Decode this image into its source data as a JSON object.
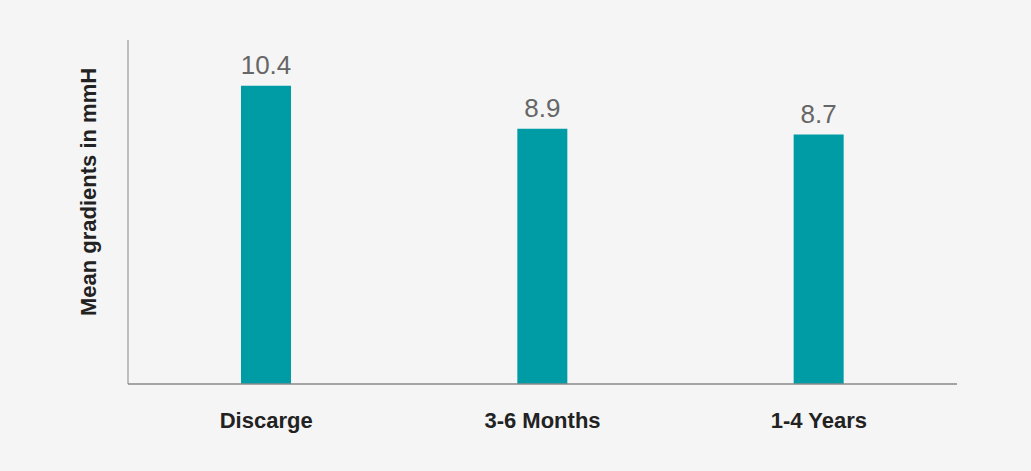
{
  "chart_data": {
    "type": "bar",
    "categories": [
      "Discarge",
      "3-6 Months",
      "1-4 Years"
    ],
    "values": [
      10.4,
      8.9,
      8.7
    ],
    "color": "#009ca6",
    "ylabel": "Mean gradients in mmH",
    "ylim": [
      0,
      12
    ],
    "data_labels": true,
    "tick_labels": "x"
  }
}
